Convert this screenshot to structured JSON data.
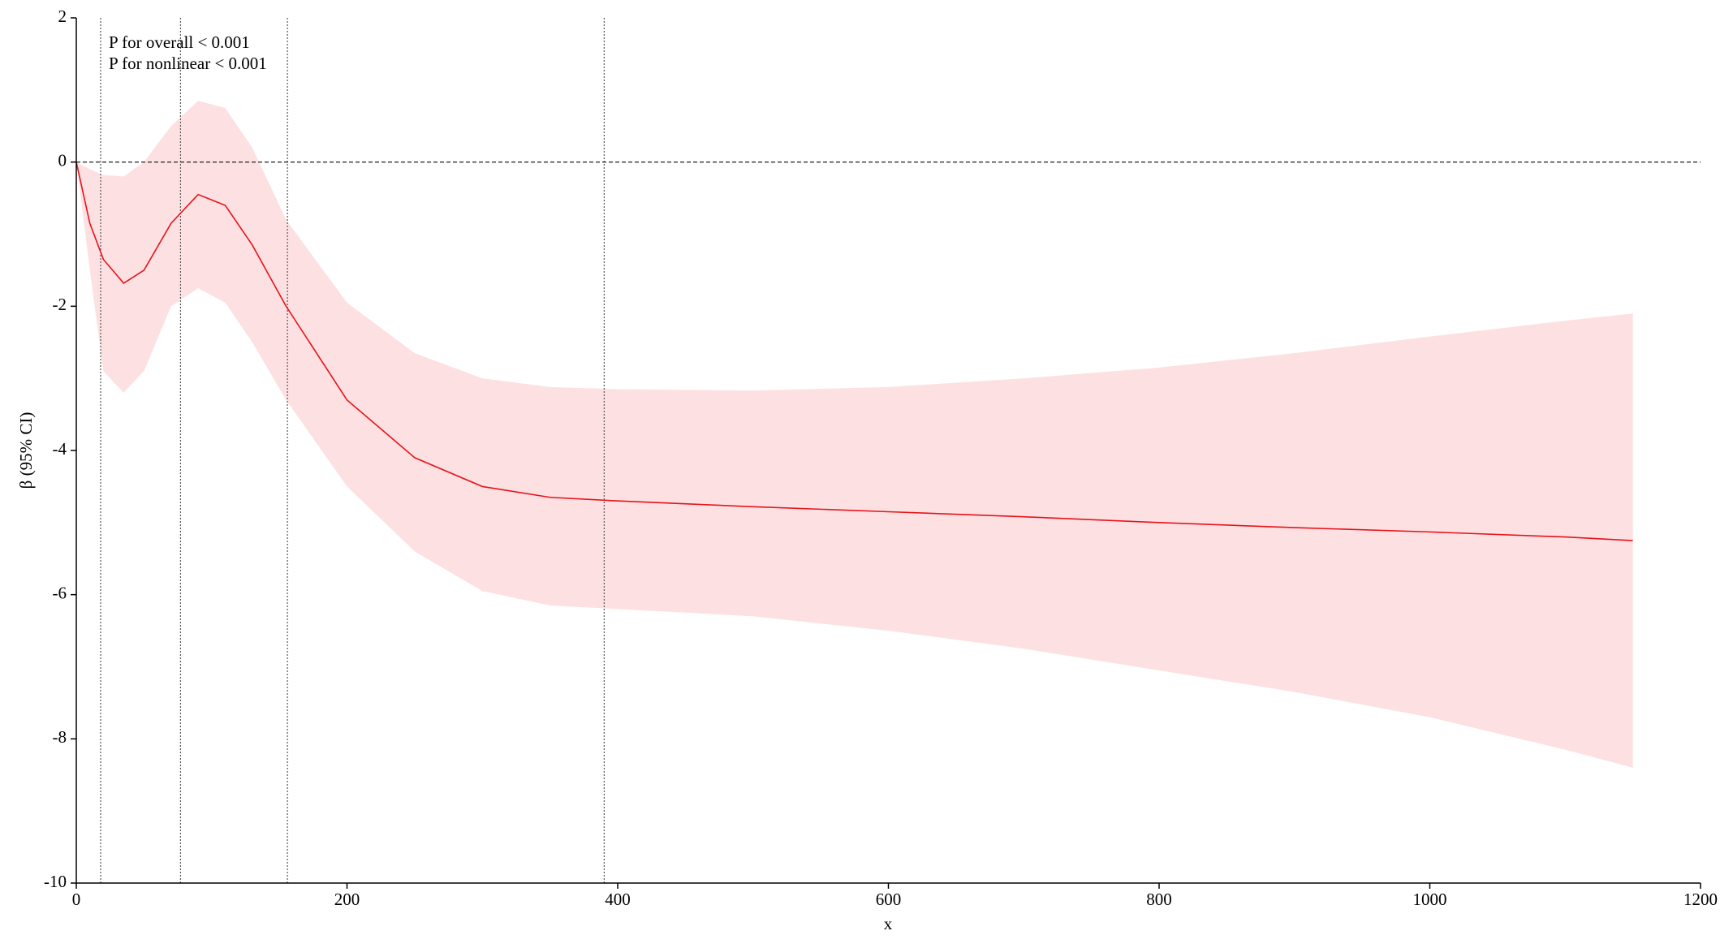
{
  "chart_data": {
    "type": "rcs",
    "x_label": "x",
    "y_label": "β (95% CI)",
    "annotations": [
      "P for overall < 0.001",
      "P for nonlinear < 0.001"
    ],
    "x": [
      0,
      10,
      20,
      35,
      50,
      70,
      90,
      110,
      130,
      155,
      200,
      250,
      300,
      350,
      400,
      500,
      600,
      700,
      800,
      900,
      1000,
      1100,
      1150
    ],
    "values": [
      0,
      -0.85,
      -1.35,
      -1.68,
      -1.5,
      -0.85,
      -0.45,
      -0.6,
      -1.15,
      -2.0,
      -3.3,
      -4.1,
      -4.5,
      -4.65,
      -4.7,
      -4.78,
      -4.85,
      -4.92,
      -5.0,
      -5.07,
      -5.13,
      -5.2,
      -5.25
    ],
    "upper": [
      0,
      -0.1,
      -0.18,
      -0.2,
      0.0,
      0.5,
      0.85,
      0.75,
      0.2,
      -0.8,
      -1.95,
      -2.65,
      -3.0,
      -3.12,
      -3.15,
      -3.17,
      -3.12,
      -3.0,
      -2.85,
      -2.65,
      -2.42,
      -2.2,
      -2.1
    ],
    "lower": [
      0,
      -1.5,
      -2.9,
      -3.2,
      -2.9,
      -2.0,
      -1.75,
      -1.95,
      -2.5,
      -3.3,
      -4.5,
      -5.4,
      -5.95,
      -6.15,
      -6.2,
      -6.3,
      -6.5,
      -6.75,
      -7.05,
      -7.35,
      -7.7,
      -8.15,
      -8.4
    ],
    "line_color": "#e8121a",
    "band_color": "#fde1e2",
    "reference_x": [
      18,
      77,
      156,
      390
    ],
    "reference_y": 0,
    "xlim": [
      0,
      1200
    ],
    "xticks": [
      0,
      200,
      400,
      600,
      800,
      1000,
      1200
    ],
    "ylim": [
      -10,
      2
    ],
    "yticks": [
      -10,
      -8,
      -6,
      -4,
      -2,
      0,
      2
    ]
  }
}
